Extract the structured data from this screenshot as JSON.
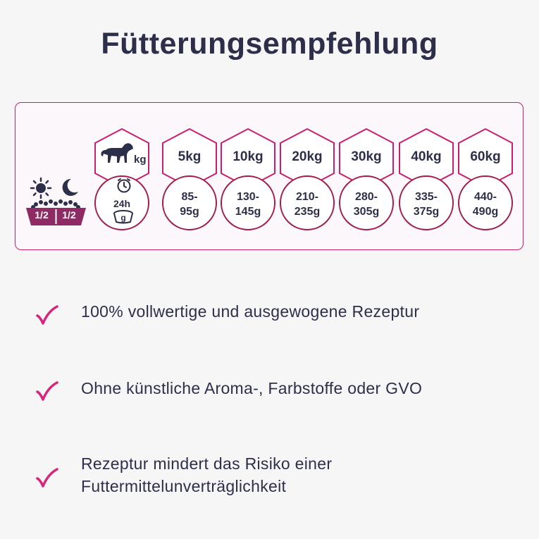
{
  "title": "Fütterungsempfehlung",
  "colors": {
    "accent": "#c8206e",
    "dark": "#2d2f4a",
    "circle": "#a11f4d",
    "bowl": "#8e2b64"
  },
  "feeding_icon": {
    "halves": [
      "1/2",
      "1/2"
    ],
    "icons": [
      "sun-icon",
      "moon-icon",
      "bowl-icon"
    ]
  },
  "header_column": {
    "weight_unit": "kg",
    "duration": "24h",
    "bowl_unit": "g",
    "icons": [
      "dog-icon",
      "clock-icon",
      "bowl-icon"
    ]
  },
  "table": {
    "weights": [
      "5kg",
      "10kg",
      "20kg",
      "30kg",
      "40kg",
      "60kg"
    ],
    "amounts": [
      {
        "line1": "85-",
        "line2": "95g"
      },
      {
        "line1": "130-",
        "line2": "145g"
      },
      {
        "line1": "210-",
        "line2": "235g"
      },
      {
        "line1": "280-",
        "line2": "305g"
      },
      {
        "line1": "335-",
        "line2": "375g"
      },
      {
        "line1": "440-",
        "line2": "490g"
      }
    ]
  },
  "benefits": [
    {
      "line1": "100% vollwertige und ausgewogene Rezeptur",
      "line2": ""
    },
    {
      "line1": "Ohne künstliche Aroma-, Farbstoffe oder GVO",
      "line2": ""
    },
    {
      "line1": "Rezeptur mindert das Risiko einer",
      "line2": "Futtermittelunverträglichkeit"
    }
  ]
}
